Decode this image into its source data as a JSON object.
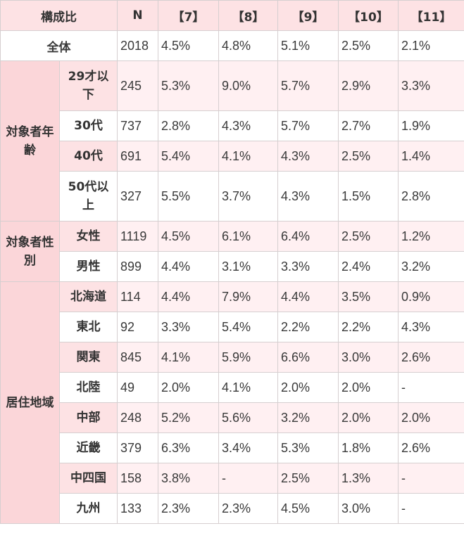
{
  "header": {
    "composition": "構成比",
    "columns": [
      "N",
      "【7】",
      "【8】",
      "【9】",
      "【10】",
      "【11】"
    ]
  },
  "total": {
    "label": "全体",
    "values": [
      "2018",
      "4.5%",
      "4.8%",
      "5.1%",
      "2.5%",
      "2.1%"
    ]
  },
  "groups": {
    "age": "対象者年齢",
    "gender": "対象者性別",
    "region": "居住地域"
  },
  "rows": [
    {
      "label": "29才以下",
      "values": [
        "245",
        "5.3%",
        "9.0%",
        "5.7%",
        "2.9%",
        "3.3%"
      ]
    },
    {
      "label": "30代",
      "values": [
        "737",
        "2.8%",
        "4.3%",
        "5.7%",
        "2.7%",
        "1.9%"
      ]
    },
    {
      "label": "40代",
      "values": [
        "691",
        "5.4%",
        "4.1%",
        "4.3%",
        "2.5%",
        "1.4%"
      ]
    },
    {
      "label": "50代以上",
      "values": [
        "327",
        "5.5%",
        "3.7%",
        "4.3%",
        "1.5%",
        "2.8%"
      ]
    },
    {
      "label": "女性",
      "values": [
        "1119",
        "4.5%",
        "6.1%",
        "6.4%",
        "2.5%",
        "1.2%"
      ]
    },
    {
      "label": "男性",
      "values": [
        "899",
        "4.4%",
        "3.1%",
        "3.3%",
        "2.4%",
        "3.2%"
      ]
    },
    {
      "label": "北海道",
      "values": [
        "114",
        "4.4%",
        "7.9%",
        "4.4%",
        "3.5%",
        "0.9%"
      ]
    },
    {
      "label": "東北",
      "values": [
        "92",
        "3.3%",
        "5.4%",
        "2.2%",
        "2.2%",
        "4.3%"
      ]
    },
    {
      "label": "関東",
      "values": [
        "845",
        "4.1%",
        "5.9%",
        "6.6%",
        "3.0%",
        "2.6%"
      ]
    },
    {
      "label": "北陸",
      "values": [
        "49",
        "2.0%",
        "4.1%",
        "2.0%",
        "2.0%",
        "-"
      ]
    },
    {
      "label": "中部",
      "values": [
        "248",
        "5.2%",
        "5.6%",
        "3.2%",
        "2.0%",
        "2.0%"
      ]
    },
    {
      "label": "近畿",
      "values": [
        "379",
        "6.3%",
        "3.4%",
        "5.3%",
        "1.8%",
        "2.6%"
      ]
    },
    {
      "label": "中四国",
      "values": [
        "158",
        "3.8%",
        "-",
        "2.5%",
        "1.3%",
        "-"
      ]
    },
    {
      "label": "九州",
      "values": [
        "133",
        "2.3%",
        "2.3%",
        "4.5%",
        "3.0%",
        "-"
      ]
    }
  ]
}
